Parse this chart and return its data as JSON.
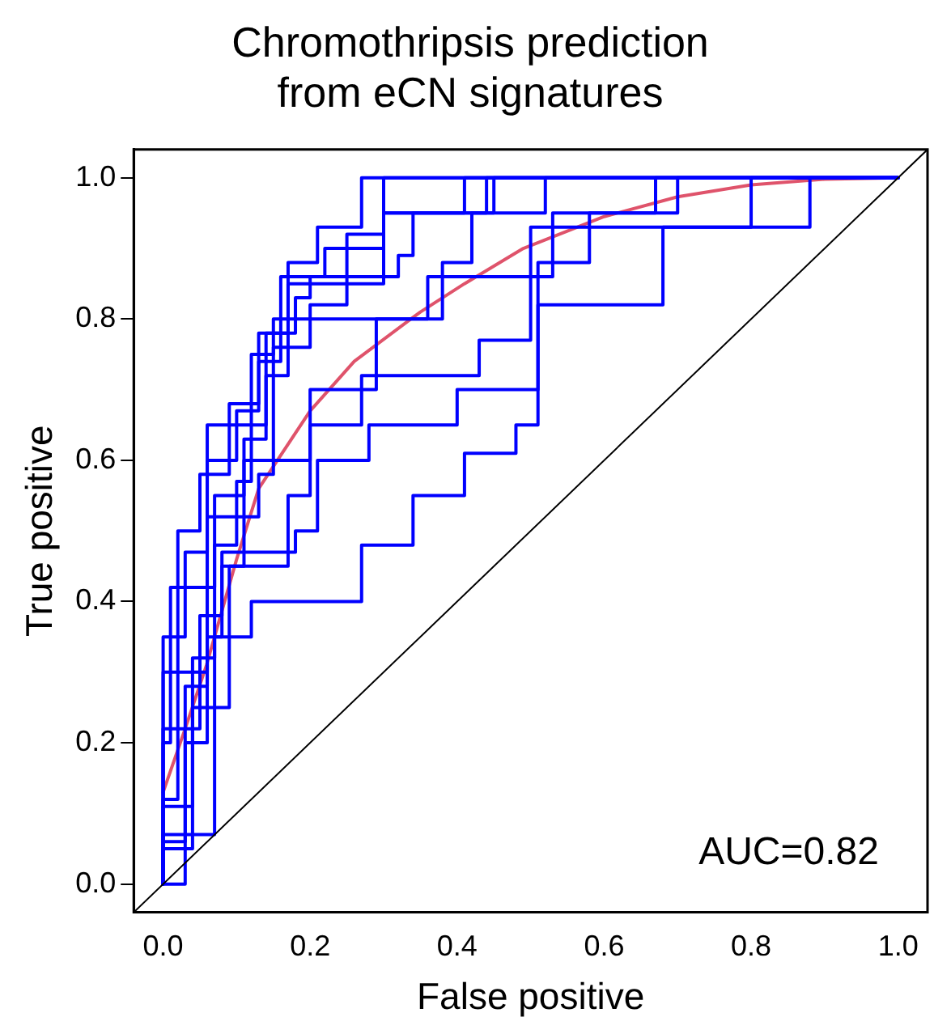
{
  "chart_data": {
    "type": "line",
    "title": "Chromothripsis prediction\nfrom eCN signatures",
    "xlabel": "False positive",
    "ylabel": "True positive",
    "annotations": [
      "AUC=0.82"
    ],
    "xlim": [
      -0.04,
      1.04
    ],
    "ylim": [
      -0.04,
      1.04
    ],
    "xticks": [
      {
        "value": 0,
        "label": "0.0"
      },
      {
        "value": 0.2,
        "label": "0.2"
      },
      {
        "value": 0.4,
        "label": "0.4"
      },
      {
        "value": 0.6,
        "label": "0.6"
      },
      {
        "value": 0.8,
        "label": "0.8"
      },
      {
        "value": 1,
        "label": "1.0"
      }
    ],
    "yticks": [
      {
        "value": 0,
        "label": "0.0"
      },
      {
        "value": 0.2,
        "label": "0.2"
      },
      {
        "value": 0.4,
        "label": "0.4"
      },
      {
        "value": 0.6,
        "label": "0.6"
      },
      {
        "value": 0.8,
        "label": "0.8"
      },
      {
        "value": 1,
        "label": "1.0"
      }
    ],
    "grid": false,
    "legend": false,
    "marker": "none",
    "series": [
      {
        "color": "#000000",
        "x": [
          -0.04,
          1.04
        ],
        "values": [
          -0.04,
          1.04
        ]
      },
      {
        "color": "#0000ff",
        "x": [
          0,
          0,
          0.03,
          0.03,
          0.06,
          0.06,
          0.14,
          0.14,
          0.17,
          0.17,
          0.21,
          0.21,
          0.27,
          0.27,
          1
        ],
        "values": [
          0,
          0.35,
          0.35,
          0.47,
          0.47,
          0.65,
          0.65,
          0.72,
          0.72,
          0.88,
          0.88,
          0.93,
          0.93,
          1,
          1
        ]
      },
      {
        "color": "#0000ff",
        "x": [
          0,
          0,
          0.01,
          0.01,
          0.07,
          0.07,
          0.11,
          0.11,
          0.14,
          0.14,
          0.18,
          0.18,
          0.2,
          0.2,
          0.32,
          0.32,
          0.34,
          0.34,
          0.45,
          0.45,
          1
        ],
        "values": [
          0,
          0.2,
          0.2,
          0.42,
          0.42,
          0.55,
          0.55,
          0.63,
          0.63,
          0.78,
          0.78,
          0.83,
          0.83,
          0.86,
          0.86,
          0.89,
          0.89,
          0.95,
          0.95,
          1,
          1
        ]
      },
      {
        "color": "#0000ff",
        "x": [
          0,
          0,
          0.03,
          0.03,
          0.06,
          0.06,
          0.13,
          0.13,
          0.15,
          0.15,
          0.2,
          0.2,
          0.25,
          0.25,
          0.3,
          0.3,
          1
        ],
        "values": [
          0,
          0.06,
          0.06,
          0.28,
          0.28,
          0.52,
          0.52,
          0.58,
          0.58,
          0.76,
          0.76,
          0.82,
          0.82,
          0.92,
          0.92,
          1,
          1
        ]
      },
      {
        "color": "#0000ff",
        "x": [
          0,
          0,
          0.04,
          0.04,
          0.07,
          0.07,
          0.1,
          0.1,
          0.12,
          0.12,
          0.15,
          0.15,
          0.38,
          0.38,
          0.42,
          0.42,
          0.52,
          0.52,
          1
        ],
        "values": [
          0,
          0.11,
          0.11,
          0.32,
          0.32,
          0.48,
          0.48,
          0.57,
          0.57,
          0.75,
          0.75,
          0.8,
          0.8,
          0.88,
          0.88,
          0.95,
          0.95,
          1,
          1
        ]
      },
      {
        "color": "#0000ff",
        "x": [
          0,
          0.03,
          0.03,
          0.06,
          0.06,
          0.08,
          0.08,
          0.11,
          0.11,
          0.2,
          0.2,
          0.29,
          0.29,
          0.36,
          0.36,
          0.53,
          0.53,
          0.7,
          0.7,
          1
        ],
        "values": [
          0,
          0,
          0.2,
          0.2,
          0.35,
          0.35,
          0.45,
          0.45,
          0.6,
          0.6,
          0.7,
          0.7,
          0.8,
          0.8,
          0.86,
          0.86,
          0.95,
          0.95,
          1,
          1
        ]
      },
      {
        "color": "#0000ff",
        "x": [
          0,
          0,
          0.07,
          0.07,
          0.12,
          0.12,
          0.27,
          0.27,
          0.34,
          0.34,
          0.41,
          0.41,
          0.48,
          0.48,
          0.51,
          0.51,
          0.68,
          0.68,
          0.88,
          0.88,
          1
        ],
        "values": [
          0,
          0.07,
          0.07,
          0.35,
          0.35,
          0.4,
          0.4,
          0.48,
          0.48,
          0.55,
          0.55,
          0.61,
          0.61,
          0.65,
          0.65,
          0.82,
          0.82,
          0.93,
          0.93,
          1,
          1
        ]
      },
      {
        "color": "#0000ff",
        "x": [
          0,
          0,
          0.05,
          0.05,
          0.08,
          0.08,
          0.18,
          0.18,
          0.21,
          0.21,
          0.28,
          0.28,
          0.4,
          0.4,
          0.51,
          0.51,
          0.58,
          0.58,
          0.67,
          0.67,
          1
        ],
        "values": [
          0,
          0.22,
          0.22,
          0.38,
          0.38,
          0.47,
          0.47,
          0.5,
          0.5,
          0.6,
          0.6,
          0.65,
          0.65,
          0.7,
          0.7,
          0.88,
          0.88,
          0.95,
          0.95,
          1,
          1
        ]
      },
      {
        "color": "#0000ff",
        "x": [
          0,
          0,
          0.02,
          0.02,
          0.06,
          0.06,
          0.1,
          0.1,
          0.13,
          0.13,
          0.17,
          0.17,
          0.3,
          0.3,
          0.41,
          0.41,
          1
        ],
        "values": [
          0,
          0.12,
          0.12,
          0.3,
          0.3,
          0.6,
          0.6,
          0.67,
          0.67,
          0.78,
          0.78,
          0.85,
          0.85,
          0.95,
          0.95,
          1,
          1
        ]
      },
      {
        "color": "#0000ff",
        "x": [
          0,
          0,
          0.04,
          0.04,
          0.09,
          0.09,
          0.17,
          0.17,
          0.2,
          0.2,
          0.27,
          0.27,
          0.43,
          0.43,
          0.5,
          0.5,
          0.8,
          0.8,
          1
        ],
        "values": [
          0,
          0.05,
          0.05,
          0.25,
          0.25,
          0.45,
          0.45,
          0.55,
          0.55,
          0.65,
          0.65,
          0.72,
          0.72,
          0.77,
          0.77,
          0.93,
          0.93,
          1,
          1
        ]
      },
      {
        "color": "#0000ff",
        "x": [
          0,
          0,
          0.02,
          0.02,
          0.05,
          0.05,
          0.09,
          0.09,
          0.13,
          0.13,
          0.16,
          0.16,
          0.22,
          0.22,
          0.3,
          0.3,
          0.44,
          0.44,
          1
        ],
        "values": [
          0,
          0.3,
          0.3,
          0.5,
          0.5,
          0.58,
          0.58,
          0.68,
          0.68,
          0.74,
          0.74,
          0.86,
          0.86,
          0.9,
          0.9,
          0.95,
          0.95,
          1,
          1
        ]
      },
      {
        "color": "#df536b",
        "x": [
          0,
          0.03,
          0.059,
          0.1,
          0.13,
          0.2,
          0.26,
          0.35,
          0.41,
          0.49,
          0.6,
          0.7,
          0.8,
          0.9,
          1
        ],
        "values": [
          0.13,
          0.22,
          0.31,
          0.46,
          0.56,
          0.67,
          0.74,
          0.81,
          0.85,
          0.9,
          0.945,
          0.973,
          0.99,
          0.998,
          1
        ]
      }
    ]
  }
}
